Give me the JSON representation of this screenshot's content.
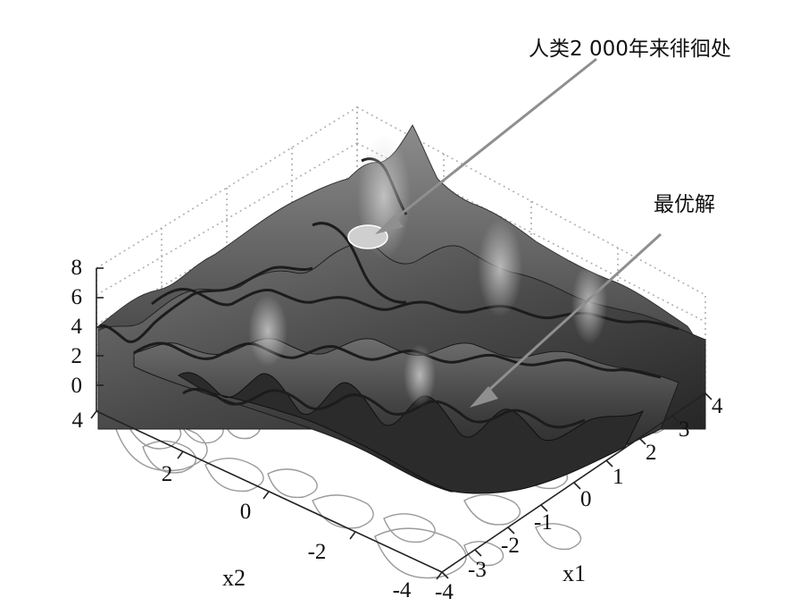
{
  "chart_data": {
    "type": "surface3d",
    "title": "",
    "xlabel": "x1",
    "ylabel": "x2",
    "zlabel": "",
    "x_ticks": [
      "-4",
      "-3",
      "-2",
      "-1",
      "0",
      "1",
      "2",
      "3",
      "4"
    ],
    "y_ticks": [
      "-4",
      "-2",
      "0",
      "2",
      "4"
    ],
    "z_ticks": [
      "0",
      "2",
      "4",
      "6",
      "8"
    ],
    "xlim": [
      -4,
      4
    ],
    "ylim": [
      -4,
      4
    ],
    "zlim": [
      0,
      8
    ],
    "grid": true,
    "contour_base": true,
    "annotations": [
      {
        "text": "人类2 000年来徘徊处",
        "target": "local-optimum-marker"
      },
      {
        "text": "最优解",
        "target": "global-optimum-region"
      }
    ],
    "colors": {
      "surface_dark": "#2a2a2a",
      "surface_light": "#9c9c9c",
      "highlight": "#c9c9c9",
      "arrow": "#8f8f8f",
      "contour": "#9a9a9a",
      "grid": "#b0b0b0"
    }
  }
}
